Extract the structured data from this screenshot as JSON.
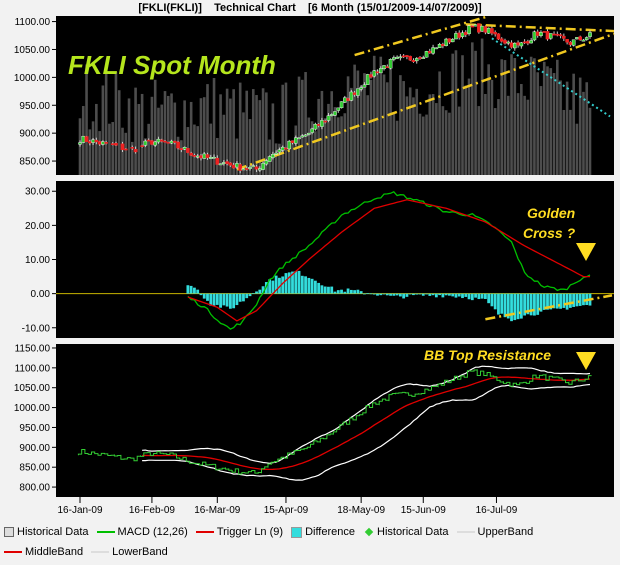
{
  "chart_title": "[FKLI(FKLI)]    Technical Chart    [6 Month (15/01/2009-14/07/2009)]",
  "annotations": {
    "panel_title": "FKLI Spot Month",
    "golden_cross_1": "Golden",
    "golden_cross_2": "Cross ?",
    "bb_top": "BB Top Resistance"
  },
  "colors": {
    "panel_bg": "#000000",
    "volume": "#4d4d4d",
    "macd": "#00c000",
    "trigger": "#e00000",
    "difference": "#33dddd",
    "historical": "#33cc33",
    "upper_band": "#ffffff",
    "middle_band": "#e00000",
    "trend": "#f0c820",
    "down_trend": "#33cccc",
    "annotation_green": "#b5e61d",
    "annotation_yellow": "#ffdd22"
  },
  "chart_data": [
    {
      "type": "candlestick",
      "name": "price",
      "x_ticks": [
        "16-Jan-09",
        "16-Feb-09",
        "16-Mar-09",
        "15-Apr-09",
        "18-May-09",
        "15-Jun-09",
        "16-Jul-09"
      ],
      "yticks": [
        "1100.00",
        "1050.00",
        "1000.00",
        "950.00",
        "900.00",
        "850.00"
      ],
      "ylim": [
        825,
        1110
      ],
      "close_anchors": [
        [
          0,
          890
        ],
        [
          8,
          880
        ],
        [
          16,
          870
        ],
        [
          22,
          885
        ],
        [
          28,
          880
        ],
        [
          36,
          860
        ],
        [
          42,
          850
        ],
        [
          48,
          840
        ],
        [
          54,
          835
        ],
        [
          58,
          860
        ],
        [
          64,
          880
        ],
        [
          70,
          900
        ],
        [
          76,
          930
        ],
        [
          84,
          975
        ],
        [
          90,
          1010
        ],
        [
          96,
          1030
        ],
        [
          102,
          1035
        ],
        [
          108,
          1050
        ],
        [
          114,
          1070
        ],
        [
          120,
          1090
        ],
        [
          124,
          1085
        ],
        [
          130,
          1065
        ],
        [
          134,
          1055
        ],
        [
          140,
          1080
        ],
        [
          146,
          1070
        ],
        [
          150,
          1062
        ],
        [
          156,
          1075
        ]
      ]
    },
    {
      "type": "line",
      "name": "macd",
      "yticks": [
        "30.00",
        "20.00",
        "10.00",
        "0.00",
        "-10.00"
      ],
      "ylim": [
        -13,
        33
      ],
      "series": [
        {
          "name": "MACD (12,26)",
          "anchors": [
            [
              33,
              -1
            ],
            [
              38,
              -4
            ],
            [
              42,
              -7.5
            ],
            [
              46,
              -10.5
            ],
            [
              50,
              -8
            ],
            [
              54,
              -3
            ],
            [
              58,
              4
            ],
            [
              62,
              8
            ],
            [
              70,
              14
            ],
            [
              80,
              23
            ],
            [
              90,
              28
            ],
            [
              96,
              29.5
            ],
            [
              104,
              27
            ],
            [
              112,
              24
            ],
            [
              120,
              23
            ],
            [
              126,
              20
            ],
            [
              132,
              15
            ],
            [
              136,
              6
            ],
            [
              142,
              2
            ],
            [
              148,
              1
            ],
            [
              154,
              5
            ]
          ]
        },
        {
          "name": "Trigger Ln (9)",
          "anchors": [
            [
              33,
              -1
            ],
            [
              42,
              -4
            ],
            [
              48,
              -8
            ],
            [
              54,
              -5
            ],
            [
              62,
              3
            ],
            [
              70,
              10
            ],
            [
              80,
              18
            ],
            [
              90,
              25
            ],
            [
              100,
              27.5
            ],
            [
              112,
              25
            ],
            [
              124,
              21
            ],
            [
              136,
              14
            ],
            [
              148,
              8
            ],
            [
              154,
              5
            ]
          ]
        }
      ],
      "difference_anchors": [
        [
          33,
          3
        ],
        [
          36,
          1
        ],
        [
          40,
          -3
        ],
        [
          46,
          -4.5
        ],
        [
          50,
          -2
        ],
        [
          54,
          1
        ],
        [
          58,
          4
        ],
        [
          62,
          5.5
        ],
        [
          66,
          6.5
        ],
        [
          70,
          5
        ],
        [
          74,
          3
        ],
        [
          78,
          1
        ],
        [
          82,
          1
        ],
        [
          90,
          0
        ],
        [
          96,
          -1
        ],
        [
          104,
          -0.5
        ],
        [
          112,
          -0.5
        ],
        [
          118,
          -1
        ],
        [
          124,
          -2
        ],
        [
          128,
          -6
        ],
        [
          132,
          -7.5
        ],
        [
          138,
          -6
        ],
        [
          144,
          -5
        ],
        [
          150,
          -4
        ],
        [
          154,
          -3.5
        ]
      ]
    },
    {
      "type": "line",
      "name": "bollinger",
      "yticks": [
        "1150.00",
        "1100.00",
        "1050.00",
        "1000.00",
        "950.00",
        "900.00",
        "850.00",
        "800.00"
      ],
      "ylim": [
        775,
        1160
      ],
      "series": [
        {
          "name": "Historical Data"
        },
        {
          "name": "UpperBand"
        },
        {
          "name": "MiddleBand"
        },
        {
          "name": "LowerBand"
        }
      ]
    }
  ],
  "legend": [
    {
      "label": "Historical Data",
      "kind": "box"
    },
    {
      "label": "MACD (12,26)",
      "kind": "line",
      "color": "#00c000"
    },
    {
      "label": "Trigger Ln (9)",
      "kind": "line",
      "color": "#e00000"
    },
    {
      "label": "Difference",
      "kind": "fill",
      "color": "#33dddd"
    },
    {
      "label": "Historical Data",
      "kind": "diamond",
      "color": "#33cc33"
    },
    {
      "label": "UpperBand",
      "kind": "line",
      "color": "#dddddd"
    },
    {
      "label": "MiddleBand",
      "kind": "line",
      "color": "#e00000"
    },
    {
      "label": "LowerBand",
      "kind": "line",
      "color": "#dddddd"
    }
  ]
}
